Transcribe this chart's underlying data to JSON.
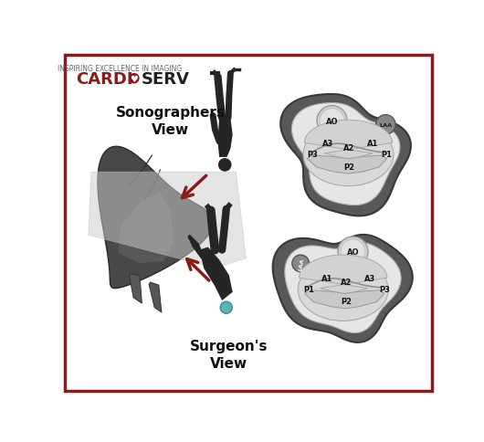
{
  "bg_color": "#ffffff",
  "border_color": "#8b1a1a",
  "title1": "Surgeon's\nView",
  "title2": "Sonographers\nView",
  "logo_sub": "INSPIRING EXCELLENCE IN IMAGING",
  "arrow_color": "#8b1a1a",
  "dark_gray": "#404040",
  "outer_blob_fill": "#585858",
  "inner_fill": "#e6e6e6",
  "valve_fill": "#d8d8d8",
  "post_fill": "#c8c8c8",
  "ao_fill": "#d4d4d4",
  "laa_fill": "#888888",
  "heart_fill": "#484848",
  "plane_fill": "#cccccc",
  "figure_fill": "#252525",
  "cap_fill": "#5bb5b5"
}
